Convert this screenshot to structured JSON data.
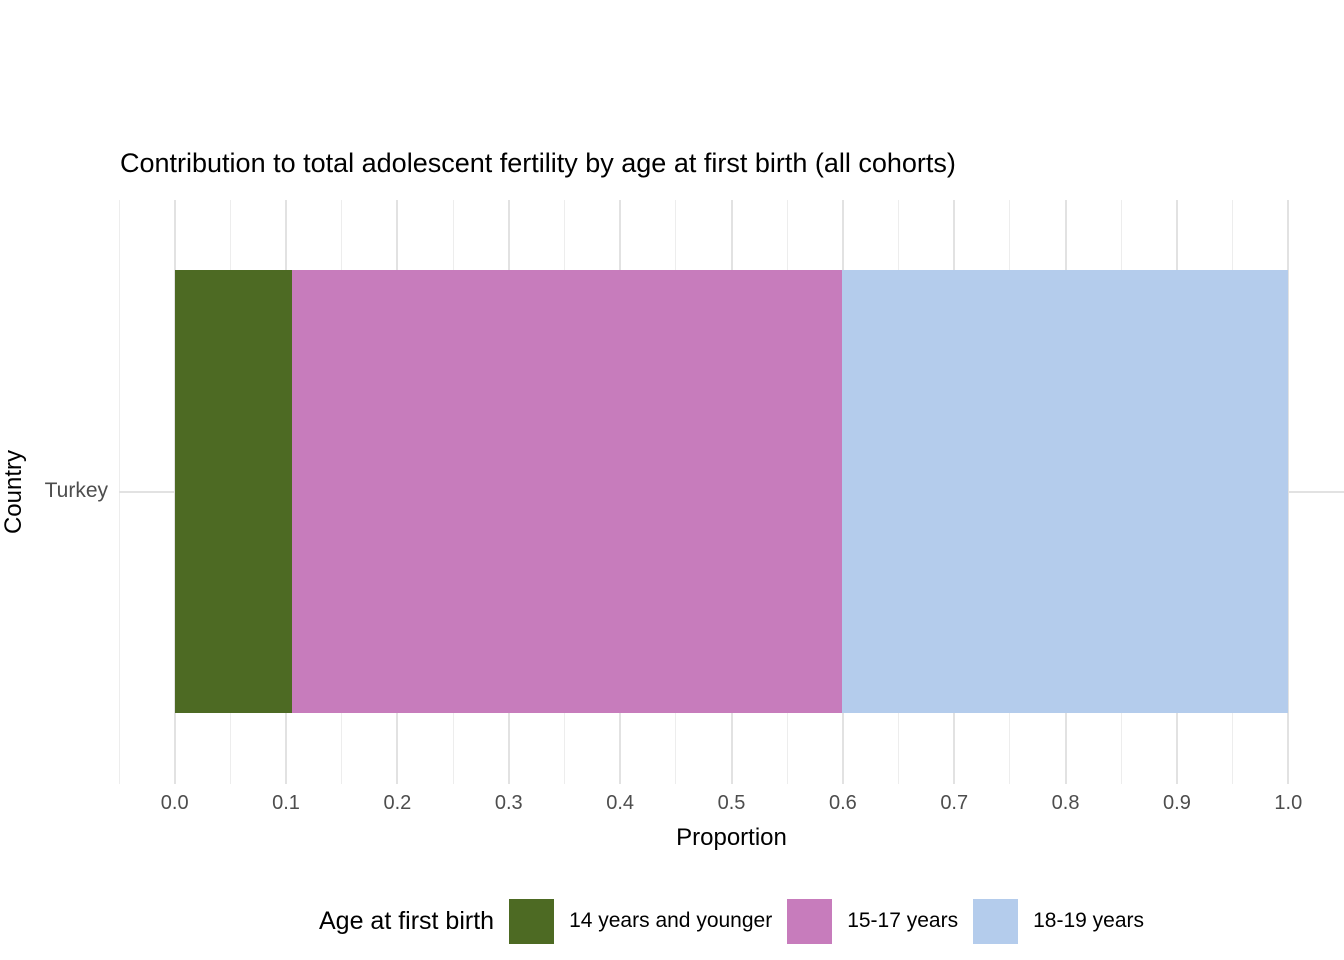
{
  "title": "Contribution to total adolescent fertility by age at first birth (all cohorts)",
  "axes": {
    "x_title": "Proportion",
    "y_title": "Country",
    "y_category": "Turkey"
  },
  "legend": {
    "title": "Age at first birth"
  },
  "colors": {
    "segment_14_and_younger": "#4D6A23",
    "segment_15_17": "#C77CBC",
    "segment_18_19": "#B4CCEC",
    "gridline_major": "#E2E2E2",
    "gridline_minor": "#EDEDED",
    "tick_text": "#4D4D4D"
  },
  "chart_data": {
    "type": "bar",
    "orientation": "horizontal",
    "stacked": true,
    "title": "Contribution to total adolescent fertility by age at first birth (all cohorts)",
    "xlabel": "Proportion",
    "ylabel": "Country",
    "categories": [
      "Turkey"
    ],
    "series": [
      {
        "name": "14 years and younger",
        "values": [
          0.105
        ],
        "color": "#4D6A23"
      },
      {
        "name": "15-17 years",
        "values": [
          0.494
        ],
        "color": "#C77CBC"
      },
      {
        "name": "18-19 years",
        "values": [
          0.401
        ],
        "color": "#B4CCEC"
      }
    ],
    "xlim": [
      -0.05,
      1.05
    ],
    "x_ticks": [
      0.0,
      0.1,
      0.2,
      0.3,
      0.4,
      0.5,
      0.6,
      0.7,
      0.8,
      0.9,
      1.0
    ],
    "x_tick_labels": [
      "0.0",
      "0.1",
      "0.2",
      "0.3",
      "0.4",
      "0.5",
      "0.6",
      "0.7",
      "0.8",
      "0.9",
      "1.0"
    ],
    "x_minor_step": 0.05,
    "grid": true,
    "legend_title": "Age at first birth",
    "legend_position": "bottom"
  }
}
